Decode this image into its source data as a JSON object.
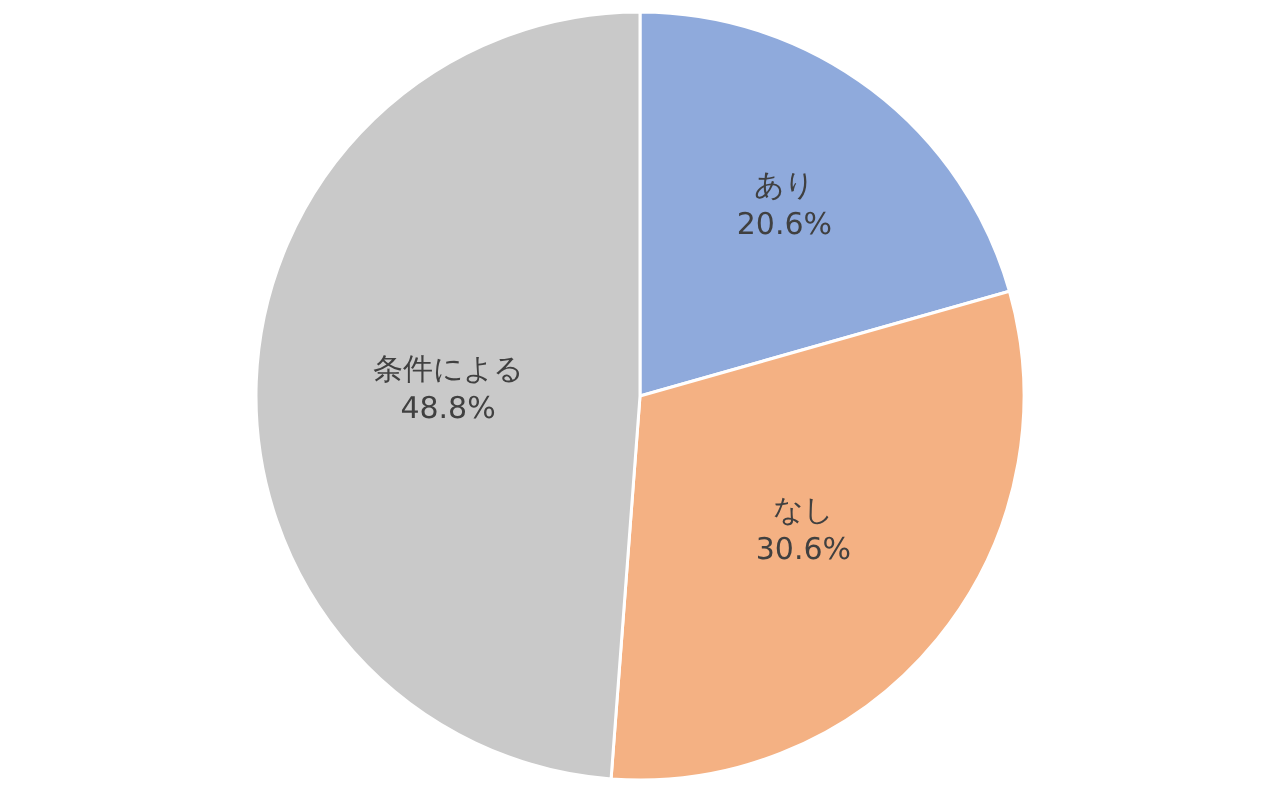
{
  "chart_data": {
    "type": "pie",
    "categories": [
      "あり",
      "なし",
      "条件による"
    ],
    "values": [
      20.6,
      30.6,
      48.8
    ],
    "colors": [
      "#8faadc",
      "#f4b183",
      "#c9c9c9"
    ],
    "value_labels": [
      "20.6%",
      "30.6%",
      "48.8%"
    ],
    "legend": false
  }
}
